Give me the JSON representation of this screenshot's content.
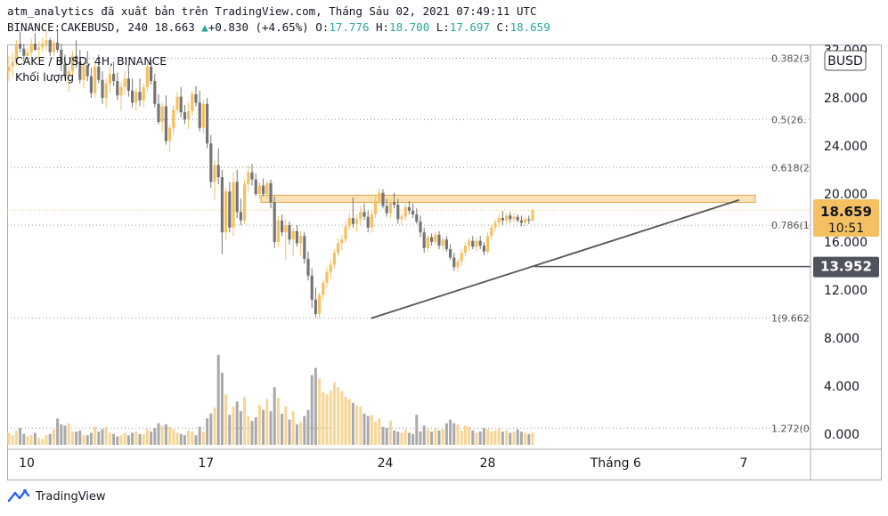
{
  "header": {
    "line1": "atm_analytics đã xuất bản trên TradingView.com, Tháng Sáu 02, 2021 07:49:11 UTC",
    "symbol_exchange": "BINANCE:CAKEBUSD",
    "interval": "240",
    "last": "18.663",
    "change": "+0.830",
    "change_pct": "(+4.65%)",
    "o_label": "O:",
    "o": "17.776",
    "h_label": "H:",
    "h": "18.700",
    "l_label": "L:",
    "l": "17.697",
    "c_label": "C:",
    "c": "18.659"
  },
  "legend": {
    "title": "CAKE / BUSD, 4H, BINANCE",
    "volume_label": "Khối lượng"
  },
  "currency_badge": "BUSD",
  "price_badges": {
    "last_price": "18.659",
    "countdown": "10:51",
    "support": "13.952"
  },
  "footer": {
    "brand": "TradingView"
  },
  "colors": {
    "up": "#f5c061",
    "down": "#757575",
    "up_volume": "#f7d594",
    "down_volume": "#a9a9a9",
    "zone": "#f9d79d",
    "trend": "#555555",
    "last_badge": "#f5c061",
    "support_badge": "#50535e"
  },
  "chart_data": {
    "type": "candlestick",
    "ylim": [
      -0.8,
      33.0
    ],
    "y_ticks": [
      "0.000",
      "4.000",
      "8.000",
      "12.000",
      "16.000",
      "20.000",
      "24.000",
      "28.000",
      "32.000"
    ],
    "y_tick_values": [
      0,
      4,
      8,
      12,
      16,
      20,
      24,
      28,
      32
    ],
    "x_ticks": [
      {
        "label": "10",
        "day": 10
      },
      {
        "label": "17",
        "day": 17
      },
      {
        "label": "24",
        "day": 24
      },
      {
        "label": "28",
        "day": 28
      },
      {
        "label": "Tháng 6",
        "day": 33
      },
      {
        "label": "7",
        "day": 38
      }
    ],
    "fib_levels": [
      {
        "label": "0.382(3",
        "value": 31.3
      },
      {
        "label": "0.5(26.",
        "value": 26.2
      },
      {
        "label": "0.618(2",
        "value": 22.2
      },
      {
        "label": "0.786(1",
        "value": 17.4
      },
      {
        "label": "1(9.662",
        "value": 9.66
      },
      {
        "label": "1.272(0",
        "value": 0.5
      }
    ],
    "resistance_zone": [
      19.3,
      19.9
    ],
    "support_level": 13.952,
    "last_price": 18.659,
    "trendline": {
      "from": {
        "day": 23.8,
        "price": 9.65
      },
      "to": {
        "day": 38,
        "price": 19.5
      }
    },
    "candles": [
      [
        30.2,
        31.5,
        29.4,
        30.6,
        1.0
      ],
      [
        30.6,
        31.8,
        29.8,
        31.0,
        0.8
      ],
      [
        31.0,
        32.8,
        30.7,
        32.5,
        1.2
      ],
      [
        32.5,
        33.5,
        31.8,
        32.1,
        1.4
      ],
      [
        32.1,
        32.5,
        31.0,
        31.5,
        0.9
      ],
      [
        31.5,
        32.2,
        30.8,
        31.8,
        0.7
      ],
      [
        31.8,
        32.9,
        31.4,
        32.5,
        0.8
      ],
      [
        32.5,
        33.4,
        31.9,
        32.0,
        1.0
      ],
      [
        32.0,
        32.7,
        31.2,
        32.2,
        0.6
      ],
      [
        32.2,
        33.0,
        31.8,
        32.5,
        0.5
      ],
      [
        32.5,
        33.6,
        32.0,
        32.8,
        0.8
      ],
      [
        32.8,
        33.0,
        31.5,
        31.8,
        0.9
      ],
      [
        31.8,
        32.8,
        31.5,
        32.6,
        1.3
      ],
      [
        32.6,
        33.6,
        31.8,
        32.0,
        2.2
      ],
      [
        32.0,
        32.5,
        30.2,
        30.8,
        1.7
      ],
      [
        30.8,
        31.6,
        29.5,
        29.8,
        1.6
      ],
      [
        29.8,
        30.6,
        28.5,
        30.2,
        1.8
      ],
      [
        30.2,
        31.9,
        29.7,
        31.5,
        1.1
      ],
      [
        31.5,
        32.8,
        30.5,
        31.0,
        1.1
      ],
      [
        31.0,
        32.0,
        29.2,
        29.5,
        1.2
      ],
      [
        29.5,
        31.0,
        28.8,
        30.7,
        0.8
      ],
      [
        30.7,
        31.9,
        29.4,
        29.8,
        0.8
      ],
      [
        29.8,
        30.5,
        28.0,
        28.4,
        1.0
      ],
      [
        28.4,
        30.9,
        28.0,
        30.6,
        1.5
      ],
      [
        30.6,
        31.6,
        29.2,
        29.5,
        1.1
      ],
      [
        29.5,
        30.2,
        27.5,
        28.0,
        1.3
      ],
      [
        28.0,
        29.6,
        27.2,
        29.2,
        1.5
      ],
      [
        29.2,
        30.6,
        28.4,
        30.0,
        1.0
      ],
      [
        30.0,
        31.0,
        29.0,
        29.4,
        0.9
      ],
      [
        29.4,
        30.1,
        27.8,
        28.2,
        0.7
      ],
      [
        28.2,
        29.3,
        27.0,
        28.9,
        0.8
      ],
      [
        28.9,
        30.2,
        28.3,
        29.6,
        1.0
      ],
      [
        29.6,
        30.8,
        28.1,
        28.6,
        0.8
      ],
      [
        28.6,
        29.6,
        27.2,
        27.6,
        1.0
      ],
      [
        27.6,
        28.8,
        26.9,
        28.5,
        1.1
      ],
      [
        28.5,
        29.6,
        27.3,
        27.8,
        0.9
      ],
      [
        27.8,
        29.2,
        27.2,
        28.9,
        0.9
      ],
      [
        28.9,
        30.9,
        28.5,
        30.6,
        1.3
      ],
      [
        30.6,
        31.2,
        29.1,
        29.4,
        1.1
      ],
      [
        29.4,
        30.0,
        27.2,
        27.5,
        1.4
      ],
      [
        27.5,
        28.3,
        25.8,
        26.0,
        1.8
      ],
      [
        26.0,
        27.6,
        25.2,
        27.3,
        1.6
      ],
      [
        27.3,
        28.2,
        24.1,
        24.4,
        1.7
      ],
      [
        24.4,
        25.8,
        23.5,
        25.5,
        1.5
      ],
      [
        25.5,
        27.4,
        24.9,
        27.0,
        1.3
      ],
      [
        27.0,
        28.5,
        26.7,
        28.1,
        1.0
      ],
      [
        28.1,
        28.9,
        26.4,
        26.8,
        0.9
      ],
      [
        26.8,
        27.4,
        25.8,
        26.2,
        0.8
      ],
      [
        26.2,
        27.6,
        25.4,
        26.9,
        1.2
      ],
      [
        26.9,
        28.6,
        26.5,
        28.3,
        1.1
      ],
      [
        28.3,
        29.0,
        27.3,
        27.6,
        0.8
      ],
      [
        27.6,
        28.6,
        25.2,
        25.5,
        1.5
      ],
      [
        25.5,
        27.8,
        25.0,
        27.5,
        1.1
      ],
      [
        27.5,
        28.0,
        23.8,
        24.2,
        2.2
      ],
      [
        24.2,
        24.9,
        20.5,
        21.0,
        2.6
      ],
      [
        21.0,
        22.8,
        19.5,
        22.4,
        3.1
      ],
      [
        22.4,
        23.8,
        20.8,
        21.4,
        7.5
      ],
      [
        21.4,
        22.0,
        15.0,
        16.8,
        6.0
      ],
      [
        16.8,
        20.5,
        16.2,
        20.2,
        4.2
      ],
      [
        20.2,
        21.0,
        16.8,
        17.2,
        2.5
      ],
      [
        17.2,
        21.8,
        16.5,
        21.0,
        3.2
      ],
      [
        21.0,
        22.0,
        18.0,
        18.5,
        3.6
      ],
      [
        18.5,
        19.6,
        17.4,
        17.8,
        2.8
      ],
      [
        17.8,
        21.2,
        17.5,
        20.8,
        4.0
      ],
      [
        20.8,
        22.4,
        20.2,
        21.8,
        2.4
      ],
      [
        21.8,
        22.5,
        20.7,
        21.2,
        2.0
      ],
      [
        21.2,
        21.7,
        19.8,
        20.0,
        2.3
      ],
      [
        20.0,
        21.0,
        19.6,
        20.7,
        3.3
      ],
      [
        20.7,
        21.3,
        19.8,
        20.0,
        2.9
      ],
      [
        20.0,
        21.1,
        19.6,
        20.9,
        3.8
      ],
      [
        20.9,
        21.2,
        18.8,
        19.3,
        2.8
      ],
      [
        19.3,
        19.8,
        15.5,
        16.0,
        4.8
      ],
      [
        16.0,
        18.2,
        15.6,
        17.8,
        3.9
      ],
      [
        17.8,
        18.3,
        16.5,
        16.8,
        2.6
      ],
      [
        16.8,
        17.9,
        14.5,
        17.4,
        3.2
      ],
      [
        17.4,
        17.7,
        15.8,
        16.2,
        2.1
      ],
      [
        16.2,
        17.2,
        14.8,
        16.9,
        2.8
      ],
      [
        16.9,
        17.4,
        15.6,
        15.9,
        1.7
      ],
      [
        15.9,
        16.9,
        14.9,
        16.5,
        1.9
      ],
      [
        16.5,
        16.8,
        14.2,
        14.6,
        2.4
      ],
      [
        14.6,
        15.2,
        12.8,
        13.2,
        2.9
      ],
      [
        13.2,
        13.8,
        10.5,
        11.2,
        5.8
      ],
      [
        11.2,
        12.2,
        9.7,
        10.0,
        6.4
      ],
      [
        10.0,
        11.8,
        9.6,
        11.6,
        5.5
      ],
      [
        11.6,
        12.9,
        11.2,
        12.6,
        4.4
      ],
      [
        12.6,
        13.9,
        12.2,
        13.5,
        4.2
      ],
      [
        13.5,
        14.5,
        12.9,
        14.1,
        4.5
      ],
      [
        14.1,
        15.4,
        13.8,
        15.1,
        5.2
      ],
      [
        15.1,
        16.3,
        14.8,
        15.9,
        4.8
      ],
      [
        15.9,
        16.6,
        15.3,
        16.2,
        4.5
      ],
      [
        16.2,
        17.7,
        15.9,
        17.3,
        4.0
      ],
      [
        17.3,
        18.4,
        17.0,
        18.0,
        3.8
      ],
      [
        18.0,
        19.7,
        17.2,
        17.5,
        3.5
      ],
      [
        17.5,
        18.3,
        16.8,
        17.9,
        3.3
      ],
      [
        17.9,
        19.0,
        17.4,
        18.5,
        3.2
      ],
      [
        18.5,
        19.2,
        17.8,
        18.1,
        2.6
      ],
      [
        18.1,
        18.6,
        16.8,
        17.2,
        2.4
      ],
      [
        17.2,
        18.6,
        16.8,
        18.3,
        2.5
      ],
      [
        18.3,
        19.8,
        18.0,
        19.4,
        1.9
      ],
      [
        19.4,
        20.5,
        19.0,
        20.1,
        2.2
      ],
      [
        20.1,
        20.4,
        18.8,
        19.0,
        1.5
      ],
      [
        19.0,
        19.6,
        18.1,
        18.4,
        1.4
      ],
      [
        18.4,
        19.6,
        18.0,
        19.3,
        2.0
      ],
      [
        19.3,
        20.1,
        18.8,
        19.1,
        1.2
      ],
      [
        19.1,
        19.6,
        17.5,
        17.9,
        1.1
      ],
      [
        17.9,
        18.4,
        17.4,
        18.1,
        1.0
      ],
      [
        18.1,
        19.3,
        17.8,
        18.9,
        1.3
      ],
      [
        18.9,
        19.4,
        18.3,
        18.6,
        1.0
      ],
      [
        18.6,
        19.2,
        18.0,
        18.3,
        0.9
      ],
      [
        18.3,
        18.8,
        17.5,
        17.7,
        2.5
      ],
      [
        17.7,
        18.2,
        16.4,
        16.8,
        1.1
      ],
      [
        16.8,
        17.2,
        15.1,
        15.5,
        1.6
      ],
      [
        15.5,
        16.6,
        15.2,
        16.4,
        1.3
      ],
      [
        16.4,
        16.7,
        15.7,
        16.0,
        1.1
      ],
      [
        16.0,
        16.8,
        15.8,
        16.6,
        1.4
      ],
      [
        16.6,
        16.9,
        15.4,
        15.7,
        1.2
      ],
      [
        15.7,
        16.4,
        15.3,
        16.2,
        1.3
      ],
      [
        16.2,
        16.5,
        15.2,
        15.4,
        1.8
      ],
      [
        15.4,
        15.8,
        14.5,
        14.7,
        2.1
      ],
      [
        14.7,
        15.1,
        13.6,
        13.9,
        1.8
      ],
      [
        13.9,
        14.6,
        13.5,
        14.4,
        1.7
      ],
      [
        14.4,
        15.4,
        14.0,
        15.1,
        1.2
      ],
      [
        15.1,
        16.0,
        14.8,
        15.7,
        1.6
      ],
      [
        15.7,
        16.3,
        15.3,
        16.1,
        1.5
      ],
      [
        16.1,
        16.5,
        15.4,
        15.6,
        1.2
      ],
      [
        15.6,
        16.4,
        15.2,
        16.1,
        1.0
      ],
      [
        16.1,
        16.5,
        15.4,
        15.7,
        1.1
      ],
      [
        15.7,
        16.0,
        14.9,
        15.2,
        1.4
      ],
      [
        15.2,
        16.8,
        15.0,
        16.5,
        1.3
      ],
      [
        16.5,
        17.5,
        16.2,
        17.2,
        1.1
      ],
      [
        17.2,
        17.9,
        16.9,
        17.6,
        1.2
      ],
      [
        17.6,
        18.4,
        17.2,
        18.0,
        1.4
      ],
      [
        18.0,
        18.6,
        17.4,
        17.8,
        1.1
      ],
      [
        17.8,
        18.4,
        17.5,
        18.2,
        1.2
      ],
      [
        18.2,
        18.5,
        17.6,
        17.9,
        1.0
      ],
      [
        17.9,
        18.4,
        17.6,
        18.1,
        1.1
      ],
      [
        18.1,
        18.3,
        17.6,
        17.8,
        1.3
      ],
      [
        17.8,
        18.2,
        17.3,
        17.6,
        1.1
      ],
      [
        17.6,
        18.1,
        17.3,
        17.9,
        1.0
      ],
      [
        17.9,
        18.2,
        17.5,
        17.8,
        0.9
      ],
      [
        17.8,
        18.7,
        17.7,
        18.66,
        1.0
      ]
    ]
  }
}
